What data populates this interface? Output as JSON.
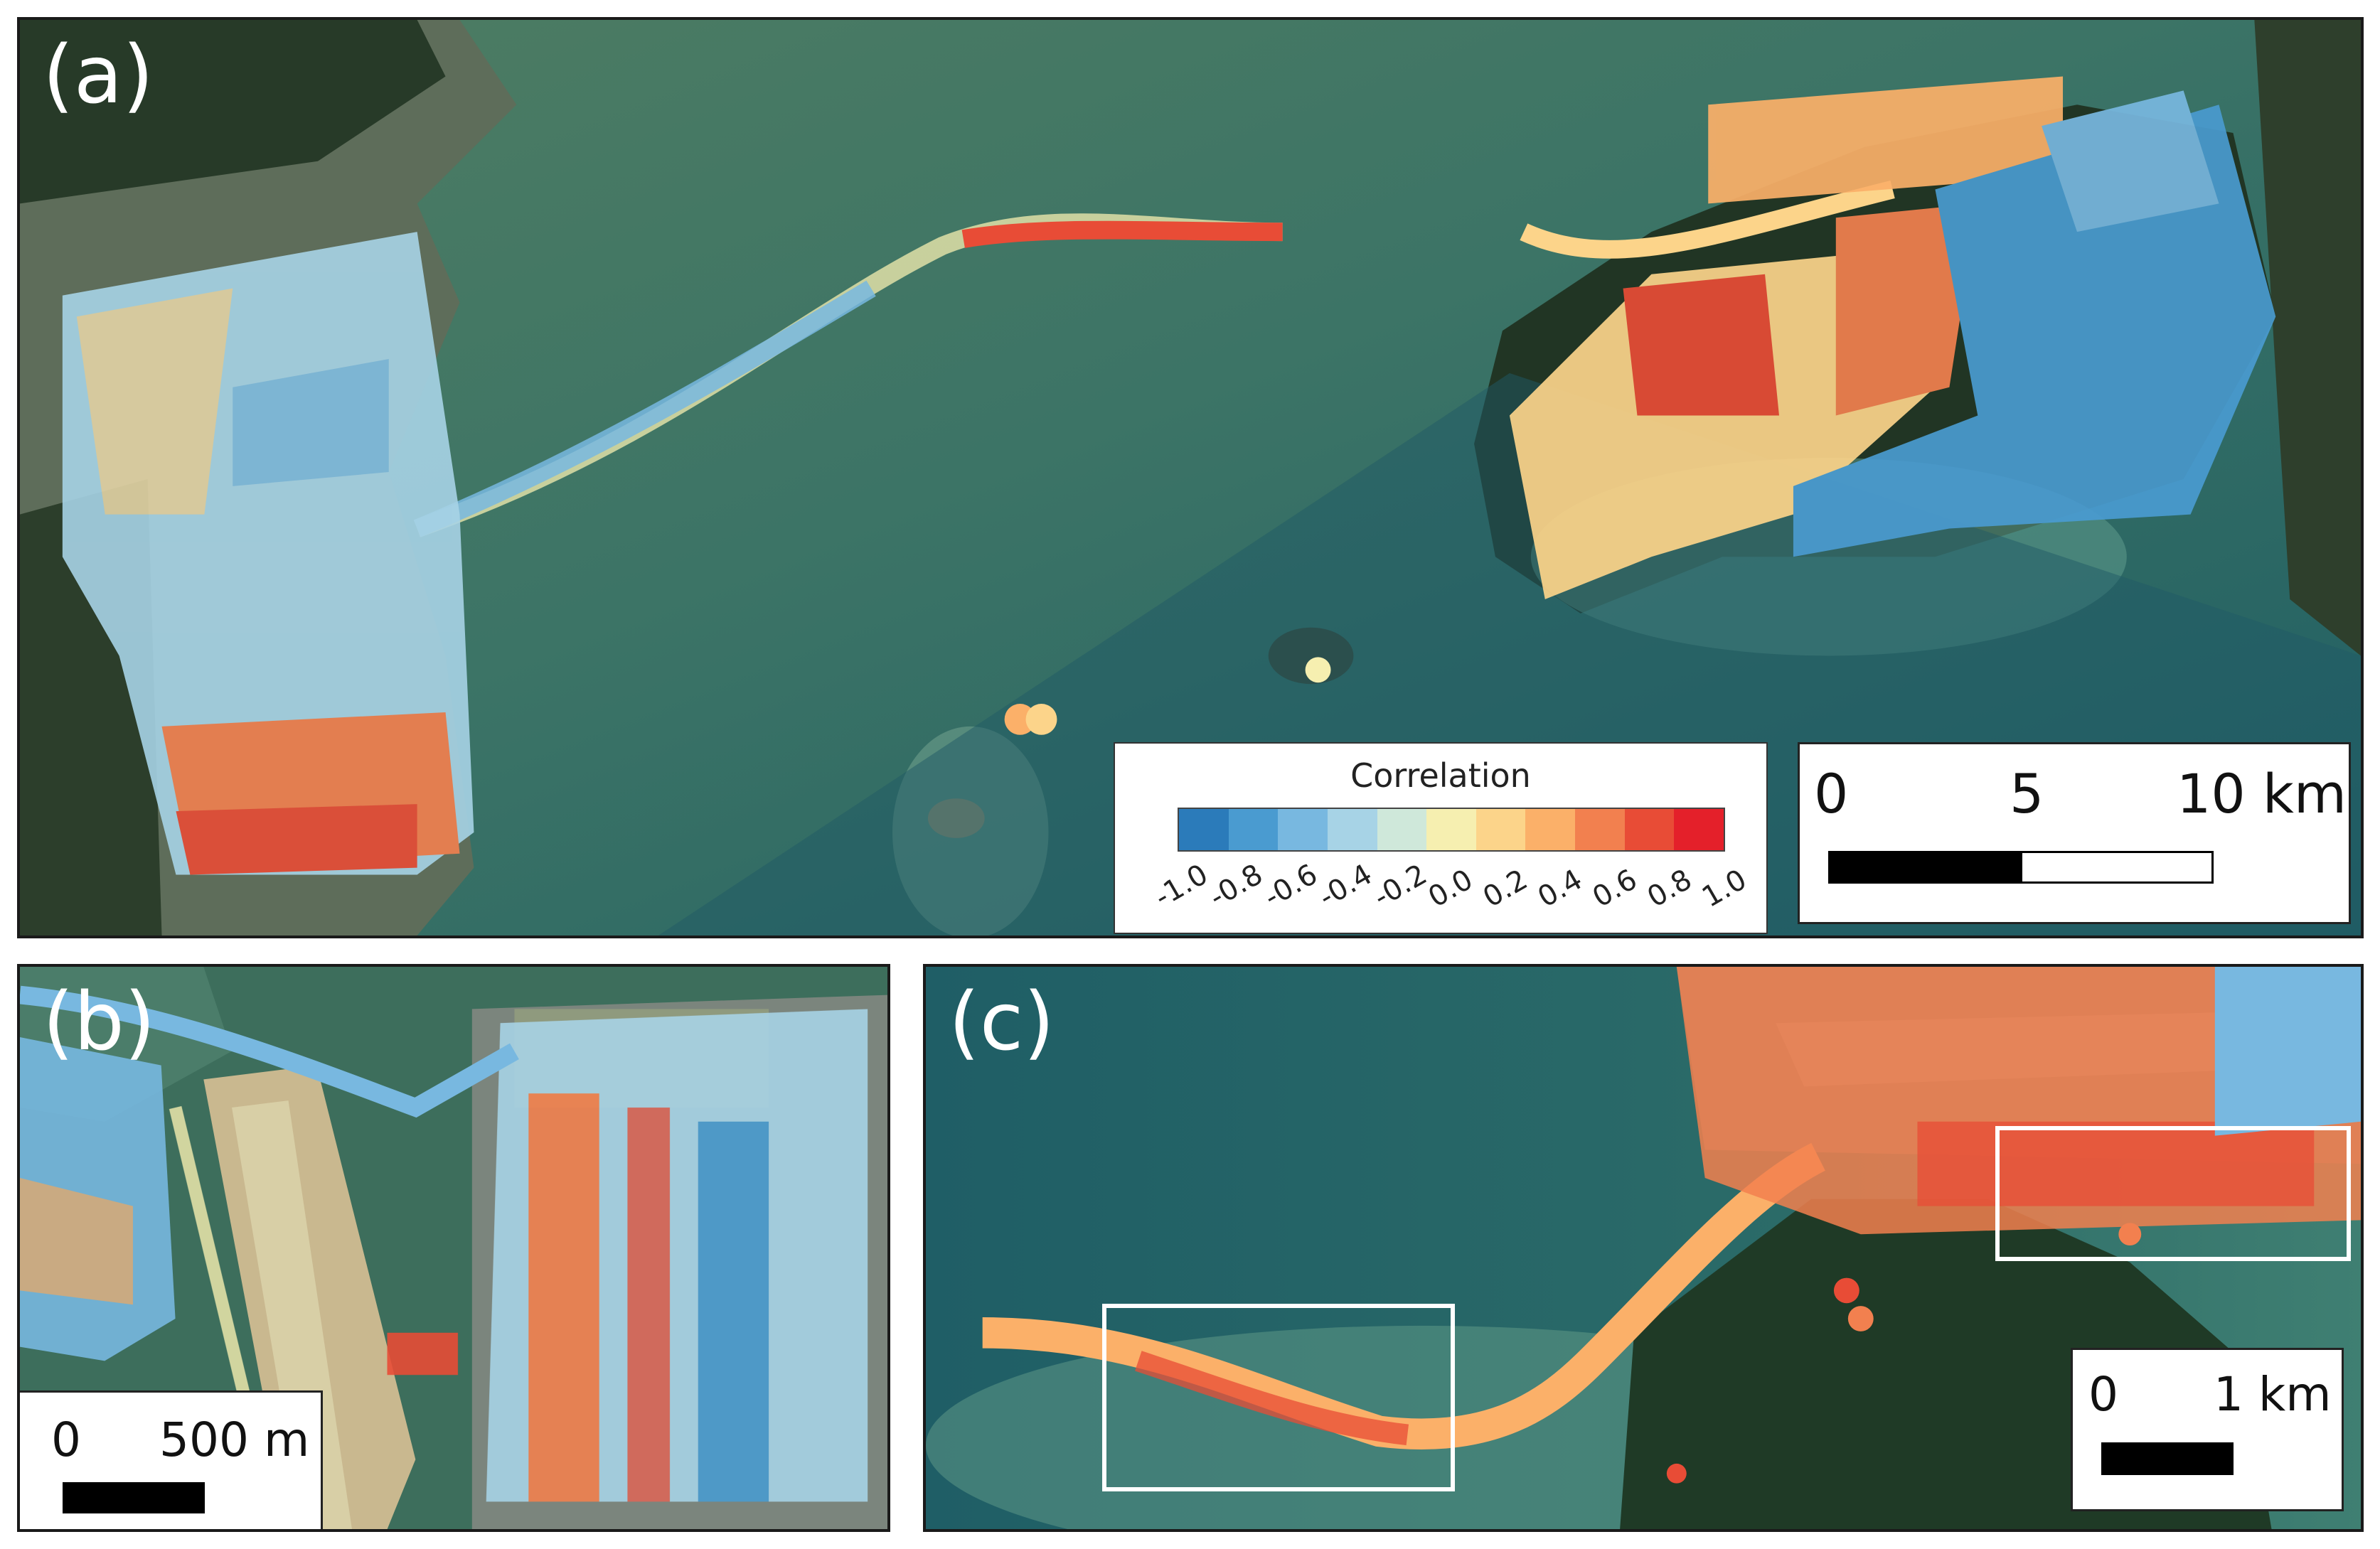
{
  "panels": {
    "a": {
      "label": "(a)"
    },
    "b": {
      "label": "(b)"
    },
    "c": {
      "label": "(c)"
    }
  },
  "legend": {
    "title": "Correlation",
    "ticks": [
      "-1.0",
      "-0.8",
      "-0.6",
      "-0.4",
      "-0.2",
      "0.0",
      "0.2",
      "0.4",
      "0.6",
      "0.8",
      "1.0"
    ],
    "colors": [
      "#2b7bba",
      "#4a9bd0",
      "#78b8e0",
      "#a7d3e6",
      "#cfe8da",
      "#f6efb0",
      "#fcd48a",
      "#fbb069",
      "#f2804f",
      "#e84c36",
      "#e4202a"
    ]
  },
  "scalebar_a": {
    "labels": [
      "0",
      "5",
      "10 km"
    ]
  },
  "scalebar_b": {
    "labels": [
      "0",
      "500 m"
    ]
  },
  "scalebar_c": {
    "labels": [
      "0",
      "1 km"
    ]
  },
  "colors": {
    "sea": "#2d6b63",
    "land": "#2a3b2a",
    "urban": "#8a8f88",
    "reclaimed": "#c9b88f",
    "box": "#ffffff"
  }
}
